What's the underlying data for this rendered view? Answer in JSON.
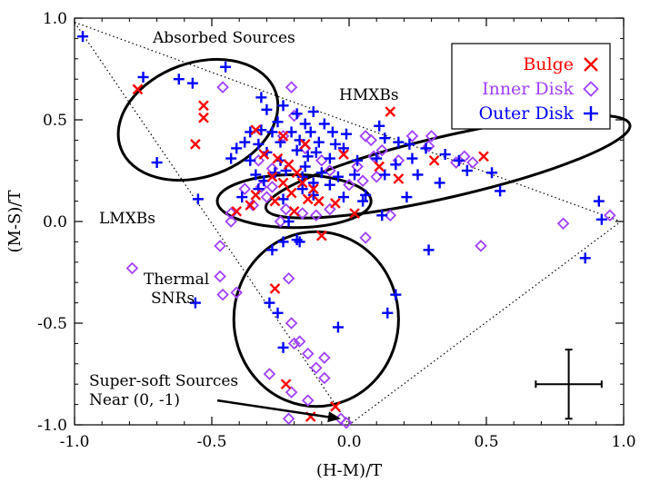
{
  "chart_data": {
    "type": "scatter",
    "xlabel": "(H-M)/T",
    "ylabel": "(M-S)/T",
    "xlim": [
      -1.0,
      1.0
    ],
    "ylim": [
      -1.0,
      1.0
    ],
    "x_ticks": [
      -1.0,
      -0.5,
      0.0,
      0.5,
      1.0
    ],
    "x_tick_labels": [
      "-1.0",
      "-0.5",
      "0.0",
      "0.5",
      "1.0"
    ],
    "y_ticks": [
      -1.0,
      -0.5,
      0.0,
      0.5,
      1.0
    ],
    "y_tick_labels": [
      "-1.0",
      "-0.5",
      "0.0",
      "0.5",
      "1.0"
    ],
    "grid": false,
    "legend_position": "top-right",
    "colors": {
      "bulge": "#ff0000",
      "inner_disk": "#a040ff",
      "outer_disk": "#0000ff",
      "axes": "#000000"
    },
    "series": [
      {
        "name": "Bulge",
        "marker": "x",
        "color": "#ff0000",
        "points": [
          [
            -0.77,
            0.65
          ],
          [
            -0.53,
            0.57
          ],
          [
            -0.53,
            0.51
          ],
          [
            -0.56,
            0.38
          ],
          [
            -0.34,
            0.45
          ],
          [
            -0.31,
            0.33
          ],
          [
            -0.26,
            0.31
          ],
          [
            -0.22,
            0.28
          ],
          [
            -0.19,
            0.24
          ],
          [
            -0.28,
            0.22
          ],
          [
            -0.24,
            0.19
          ],
          [
            -0.17,
            0.19
          ],
          [
            -0.13,
            0.16
          ],
          [
            -0.21,
            0.14
          ],
          [
            -0.15,
            0.11
          ],
          [
            -0.34,
            0.13
          ],
          [
            -0.11,
            0.1
          ],
          [
            -0.05,
            0.09
          ],
          [
            -0.2,
            0.05
          ],
          [
            -0.41,
            0.05
          ],
          [
            -0.36,
            0.08
          ],
          [
            -0.27,
            0.1
          ],
          [
            -0.1,
            -0.07
          ],
          [
            0.15,
            0.54
          ],
          [
            0.18,
            0.21
          ],
          [
            0.49,
            0.32
          ],
          [
            0.31,
            0.3
          ],
          [
            0.11,
            0.27
          ],
          [
            0.02,
            0.04
          ],
          [
            -0.27,
            -0.33
          ],
          [
            -0.23,
            -0.8
          ],
          [
            -0.14,
            -0.96
          ],
          [
            -0.05,
            -0.91
          ],
          [
            -0.02,
            0.33
          ],
          [
            -0.16,
            0.38
          ],
          [
            -0.24,
            0.42
          ]
        ]
      },
      {
        "name": "Inner Disk",
        "marker": "diamond",
        "color": "#a040ff",
        "points": [
          [
            -0.46,
            0.66
          ],
          [
            -0.21,
            0.66
          ],
          [
            -0.16,
            0.36
          ],
          [
            -0.1,
            0.3
          ],
          [
            -0.07,
            0.25
          ],
          [
            -0.24,
            0.42
          ],
          [
            -0.33,
            0.3
          ],
          [
            -0.28,
            0.26
          ],
          [
            -0.38,
            0.16
          ],
          [
            -0.32,
            0.17
          ],
          [
            -0.28,
            0.17
          ],
          [
            -0.3,
            0.12
          ],
          [
            -0.35,
            0.08
          ],
          [
            -0.43,
            0.04
          ],
          [
            -0.17,
            0.04
          ],
          [
            -0.12,
            0.03
          ],
          [
            -0.07,
            0.06
          ],
          [
            -0.23,
            0.06
          ],
          [
            -0.25,
            0.0
          ],
          [
            0.06,
            0.42
          ],
          [
            0.08,
            0.4
          ],
          [
            0.09,
            0.32
          ],
          [
            0.03,
            0.27
          ],
          [
            0.18,
            0.3
          ],
          [
            0.29,
            0.37
          ],
          [
            0.3,
            0.42
          ],
          [
            0.23,
            0.42
          ],
          [
            0.45,
            0.29
          ],
          [
            0.39,
            0.29
          ],
          [
            0.42,
            0.32
          ],
          [
            0.05,
            0.2
          ],
          [
            0.0,
            0.18
          ],
          [
            0.15,
            0.03
          ],
          [
            0.06,
            -0.08
          ],
          [
            0.48,
            -0.12
          ],
          [
            0.78,
            -0.01
          ],
          [
            0.95,
            0.03
          ],
          [
            -0.79,
            -0.23
          ],
          [
            -0.47,
            -0.27
          ],
          [
            -0.46,
            -0.36
          ],
          [
            -0.41,
            -0.35
          ],
          [
            -0.47,
            -0.12
          ],
          [
            -0.22,
            -0.28
          ],
          [
            -0.21,
            -0.5
          ],
          [
            -0.29,
            -0.75
          ],
          [
            -0.18,
            -0.59
          ],
          [
            -0.15,
            -0.65
          ],
          [
            -0.12,
            -0.72
          ],
          [
            -0.21,
            -0.84
          ],
          [
            -0.15,
            -0.88
          ],
          [
            -0.22,
            -0.97
          ],
          [
            -0.03,
            -0.97
          ],
          [
            -0.01,
            -0.99
          ],
          [
            -0.09,
            -0.77
          ],
          [
            -0.09,
            -0.67
          ],
          [
            -0.2,
            -0.6
          ],
          [
            -0.43,
            0.0
          ],
          [
            -0.2,
            0.52
          ],
          [
            0.1,
            0.22
          ],
          [
            0.12,
            0.35
          ]
        ]
      },
      {
        "name": "Outer Disk",
        "marker": "plus",
        "color": "#0000ff",
        "points": [
          [
            -0.97,
            0.91
          ],
          [
            -0.75,
            0.71
          ],
          [
            -0.62,
            0.7
          ],
          [
            -0.57,
            0.68
          ],
          [
            -0.45,
            0.76
          ],
          [
            -0.32,
            0.61
          ],
          [
            -0.3,
            0.55
          ],
          [
            -0.24,
            0.57
          ],
          [
            -0.19,
            0.53
          ],
          [
            -0.13,
            0.54
          ],
          [
            -0.26,
            0.49
          ],
          [
            -0.16,
            0.48
          ],
          [
            -0.09,
            0.48
          ],
          [
            -0.32,
            0.45
          ],
          [
            -0.28,
            0.44
          ],
          [
            -0.21,
            0.44
          ],
          [
            -0.14,
            0.44
          ],
          [
            -0.06,
            0.44
          ],
          [
            -0.01,
            0.43
          ],
          [
            -0.38,
            0.39
          ],
          [
            -0.33,
            0.38
          ],
          [
            -0.25,
            0.39
          ],
          [
            -0.18,
            0.4
          ],
          [
            -0.11,
            0.39
          ],
          [
            -0.05,
            0.38
          ],
          [
            -0.41,
            0.36
          ],
          [
            -0.3,
            0.34
          ],
          [
            -0.19,
            0.35
          ],
          [
            -0.12,
            0.34
          ],
          [
            -0.02,
            0.36
          ],
          [
            -0.7,
            0.29
          ],
          [
            -0.43,
            0.31
          ],
          [
            -0.36,
            0.3
          ],
          [
            -0.25,
            0.3
          ],
          [
            -0.15,
            0.32
          ],
          [
            -0.07,
            0.31
          ],
          [
            0.03,
            0.3
          ],
          [
            -0.34,
            0.23
          ],
          [
            -0.27,
            0.24
          ],
          [
            -0.23,
            0.25
          ],
          [
            -0.17,
            0.22
          ],
          [
            -0.1,
            0.24
          ],
          [
            -0.04,
            0.22
          ],
          [
            0.02,
            0.23
          ],
          [
            -0.31,
            0.2
          ],
          [
            -0.13,
            0.19
          ],
          [
            -0.07,
            0.18
          ],
          [
            -0.55,
            0.11
          ],
          [
            -0.39,
            0.12
          ],
          [
            -0.24,
            0.11
          ],
          [
            -0.13,
            0.13
          ],
          [
            -0.02,
            0.12
          ],
          [
            0.05,
            0.1
          ],
          [
            0.11,
            0.47
          ],
          [
            0.13,
            0.41
          ],
          [
            0.18,
            0.39
          ],
          [
            0.22,
            0.38
          ],
          [
            0.28,
            0.36
          ],
          [
            0.35,
            0.33
          ],
          [
            0.4,
            0.3
          ],
          [
            0.43,
            0.25
          ],
          [
            0.52,
            0.24
          ],
          [
            0.13,
            0.23
          ],
          [
            0.25,
            0.23
          ],
          [
            0.33,
            0.19
          ],
          [
            0.21,
            0.12
          ],
          [
            0.06,
            0.13
          ],
          [
            0.12,
            0.03
          ],
          [
            0.55,
            0.15
          ],
          [
            0.91,
            0.1
          ],
          [
            0.92,
            0.01
          ],
          [
            0.17,
            0.28
          ],
          [
            0.23,
            0.31
          ],
          [
            0.1,
            0.31
          ],
          [
            0.29,
            -0.14
          ],
          [
            0.86,
            -0.18
          ],
          [
            -0.56,
            -0.4
          ],
          [
            -0.28,
            -0.14
          ],
          [
            -0.24,
            -0.1
          ],
          [
            -0.18,
            -0.1
          ],
          [
            -0.19,
            -0.09
          ],
          [
            -0.22,
            0.0
          ],
          [
            0.17,
            -0.36
          ],
          [
            0.14,
            -0.45
          ],
          [
            -0.04,
            -0.52
          ],
          [
            -0.24,
            -0.62
          ],
          [
            -0.26,
            -0.45
          ],
          [
            -0.29,
            -0.4
          ],
          [
            -0.33,
            0.16
          ],
          [
            -0.17,
            0.16
          ],
          [
            -0.36,
            0.44
          ],
          [
            -0.16,
            0.27
          ]
        ]
      }
    ],
    "annotations": [
      {
        "text": "Absorbed Sources",
        "anchor": "upper-left region"
      },
      {
        "text": "HMXBs",
        "anchor": "upper-middle region"
      },
      {
        "text": "LMXBs",
        "anchor": "left-middle region"
      },
      {
        "text": "Thermal",
        "anchor": "lower-left region"
      },
      {
        "text": "SNRs",
        "anchor": "lower-left region"
      },
      {
        "text": "Super-soft Sources",
        "anchor": "bottom-left region"
      },
      {
        "text": "Near (0, -1)",
        "anchor": "bottom-left region"
      }
    ],
    "error_bar": {
      "x": 0.8,
      "y": -0.8,
      "x_error": 0.12,
      "y_error": 0.17
    },
    "regions": [
      {
        "name": "Absorbed Sources ellipse",
        "cx": -0.55,
        "cy": 0.5,
        "rx": 0.3,
        "ry": 0.28,
        "angle_deg": -20
      },
      {
        "name": "HMXBs ellipse",
        "cx": 0.36,
        "cy": 0.27,
        "rx": 0.68,
        "ry": 0.15,
        "angle_deg": -13
      },
      {
        "name": "LMXBs ellipse",
        "cx": -0.2,
        "cy": 0.1,
        "rx": 0.28,
        "ry": 0.13,
        "angle_deg": 0
      },
      {
        "name": "Thermal SNRs circle",
        "cx": -0.12,
        "cy": -0.48,
        "rx": 0.3,
        "ry": 0.43,
        "angle_deg": 0
      }
    ],
    "hull": [
      [
        -1.0,
        0.98
      ],
      [
        0.99,
        0.0
      ],
      [
        0.0,
        -1.0
      ]
    ],
    "annotation_arrow": {
      "from": [
        -0.48,
        -0.88
      ],
      "to": [
        -0.03,
        -0.97
      ]
    }
  }
}
